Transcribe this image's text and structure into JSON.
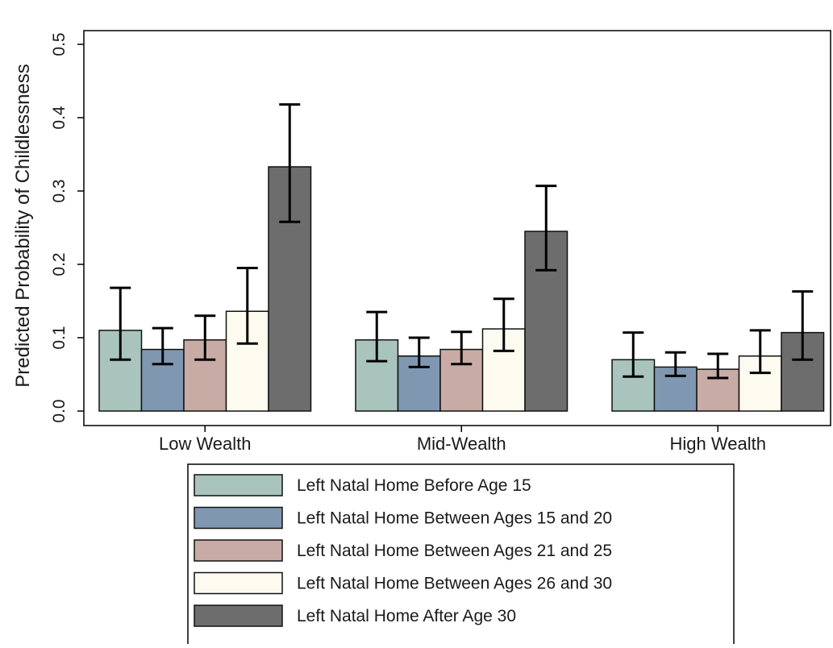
{
  "chart_data": {
    "type": "bar",
    "title": "",
    "xlabel": "",
    "ylabel": "Predicted Probability of Childlessness",
    "ylim": [
      0,
      0.5
    ],
    "yticks": [
      "0.0",
      "0.1",
      "0.2",
      "0.3",
      "0.4",
      "0.5"
    ],
    "categories": [
      "Low Wealth",
      "Mid-Wealth",
      "High Wealth"
    ],
    "series": [
      {
        "name": "Left Natal Home Before Age 15",
        "color": "#a9c4bd",
        "values": [
          0.11,
          0.097,
          0.07
        ],
        "ci_low": [
          0.07,
          0.068,
          0.047
        ],
        "ci_high": [
          0.168,
          0.135,
          0.107
        ]
      },
      {
        "name": "Left Natal Home Between Ages 15 and 20",
        "color": "#8097b1",
        "values": [
          0.084,
          0.075,
          0.06
        ],
        "ci_low": [
          0.064,
          0.06,
          0.048
        ],
        "ci_high": [
          0.113,
          0.1,
          0.08
        ]
      },
      {
        "name": "Left Natal Home Between Ages 21 and 25",
        "color": "#c9aba6",
        "values": [
          0.097,
          0.084,
          0.057
        ],
        "ci_low": [
          0.07,
          0.064,
          0.045
        ],
        "ci_high": [
          0.13,
          0.108,
          0.078
        ]
      },
      {
        "name": "Left Natal Home Between Ages 26 and 30",
        "color": "#fdfbef",
        "values": [
          0.136,
          0.112,
          0.075
        ],
        "ci_low": [
          0.092,
          0.082,
          0.052
        ],
        "ci_high": [
          0.195,
          0.153,
          0.11
        ]
      },
      {
        "name": "Left Natal Home After Age 30",
        "color": "#6d6d6d",
        "values": [
          0.333,
          0.245,
          0.107
        ],
        "ci_low": [
          0.258,
          0.192,
          0.07
        ],
        "ci_high": [
          0.418,
          0.307,
          0.163
        ]
      }
    ],
    "legend": {
      "position": "bottom",
      "border": true
    },
    "grid": false,
    "error_bars": true
  }
}
